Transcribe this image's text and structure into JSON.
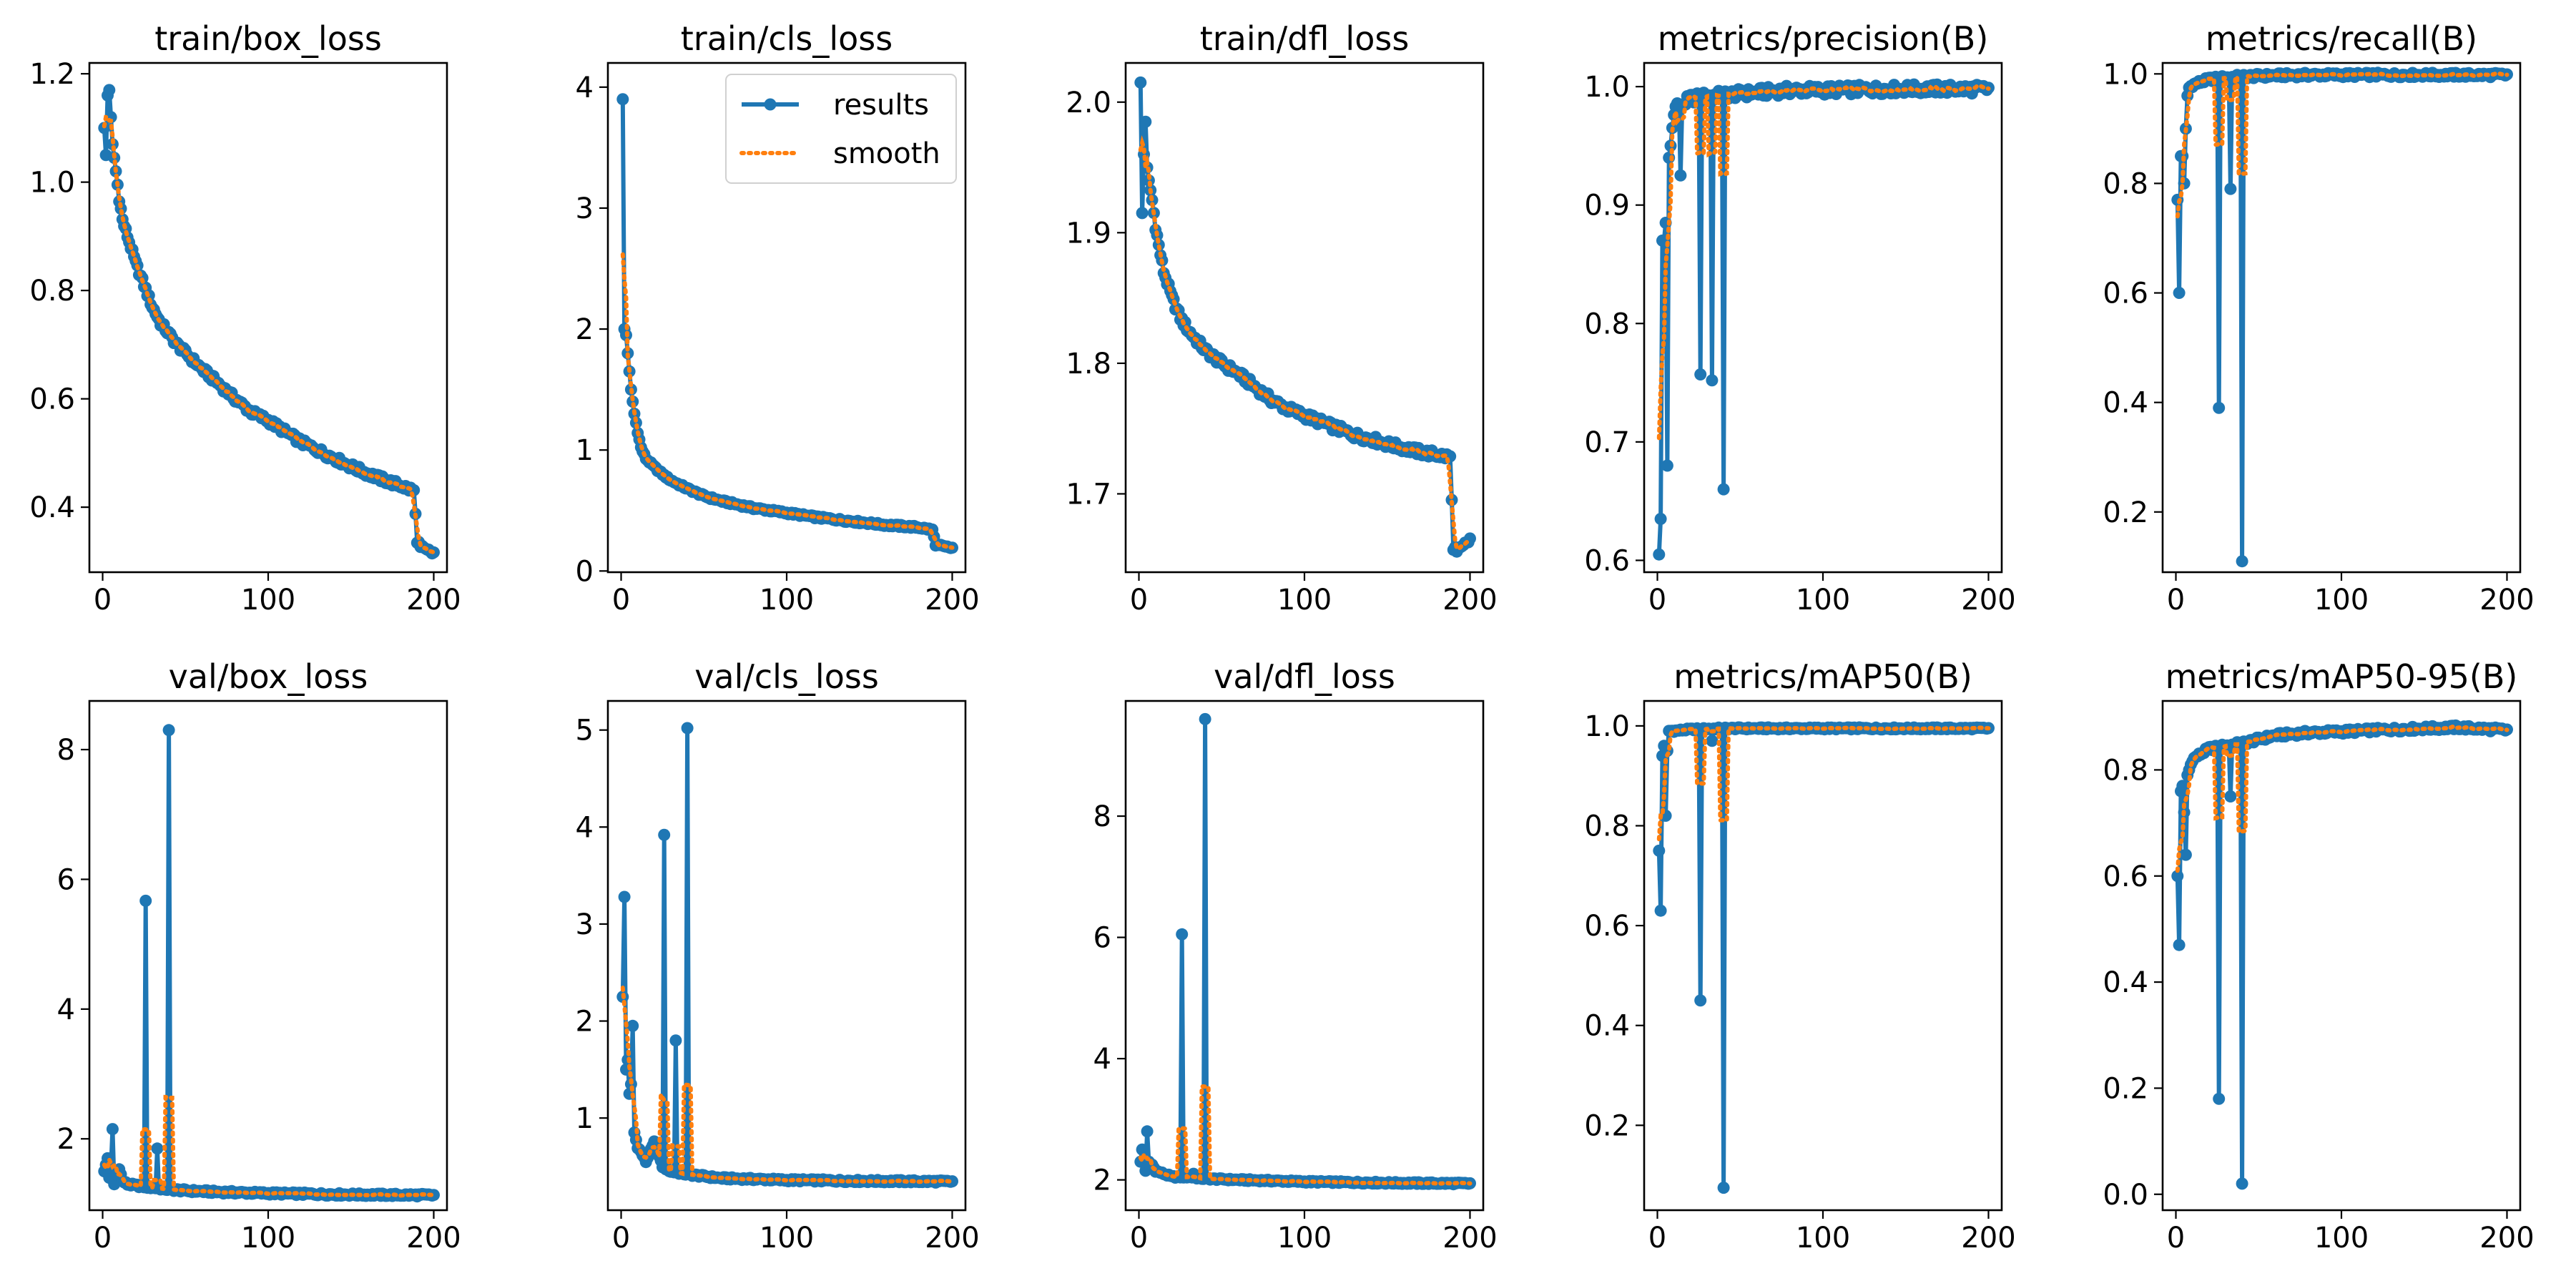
{
  "figure": {
    "background": "#ffffff"
  },
  "style": {
    "results_color": "#1f77b4",
    "smooth_color": "#ff7f0e"
  },
  "legend": {
    "location": "upper right",
    "panel_index": 1,
    "entries": [
      "results",
      "smooth"
    ]
  },
  "chart_data": [
    {
      "type": "line",
      "title": "train/box_loss",
      "xlabel": "",
      "ylabel": "",
      "xlim": [
        -8,
        208
      ],
      "ylim": [
        0.28,
        1.22
      ],
      "xticks": [
        0,
        100,
        200
      ],
      "yticks": [
        0.4,
        0.6,
        0.8,
        1.0,
        1.2
      ],
      "ytick_labels": [
        "0.4",
        "0.6",
        "0.8",
        "1.0",
        "1.2"
      ],
      "curve": [
        [
          1,
          1.1
        ],
        [
          2,
          1.05
        ],
        [
          3,
          1.16
        ],
        [
          4,
          1.17
        ],
        [
          5,
          1.12
        ],
        [
          6,
          1.07
        ],
        [
          8,
          1.02
        ],
        [
          10,
          0.97
        ],
        [
          12,
          0.93
        ],
        [
          15,
          0.9
        ],
        [
          20,
          0.85
        ],
        [
          25,
          0.81
        ],
        [
          30,
          0.77
        ],
        [
          35,
          0.74
        ],
        [
          40,
          0.72
        ],
        [
          45,
          0.7
        ],
        [
          50,
          0.685
        ],
        [
          60,
          0.655
        ],
        [
          70,
          0.628
        ],
        [
          80,
          0.6
        ],
        [
          90,
          0.575
        ],
        [
          100,
          0.56
        ],
        [
          110,
          0.54
        ],
        [
          120,
          0.52
        ],
        [
          130,
          0.505
        ],
        [
          140,
          0.49
        ],
        [
          150,
          0.475
        ],
        [
          160,
          0.462
        ],
        [
          170,
          0.45
        ],
        [
          180,
          0.44
        ],
        [
          188,
          0.43
        ],
        [
          190,
          0.34
        ],
        [
          192,
          0.325
        ],
        [
          195,
          0.32
        ],
        [
          200,
          0.315
        ]
      ],
      "spikes": [],
      "noise": 0.006,
      "smooth_window": 5
    },
    {
      "type": "line",
      "title": "train/cls_loss",
      "xlabel": "",
      "ylabel": "",
      "xlim": [
        -8,
        208
      ],
      "ylim": [
        -0.01,
        4.2
      ],
      "xticks": [
        0,
        100,
        200
      ],
      "yticks": [
        0,
        1,
        2,
        3,
        4
      ],
      "ytick_labels": [
        "0",
        "1",
        "2",
        "3",
        "4"
      ],
      "curve": [
        [
          1,
          3.9
        ],
        [
          2,
          2.0
        ],
        [
          3,
          1.95
        ],
        [
          4,
          1.8
        ],
        [
          5,
          1.65
        ],
        [
          6,
          1.5
        ],
        [
          8,
          1.3
        ],
        [
          10,
          1.15
        ],
        [
          12,
          1.02
        ],
        [
          15,
          0.93
        ],
        [
          20,
          0.86
        ],
        [
          25,
          0.8
        ],
        [
          30,
          0.75
        ],
        [
          40,
          0.68
        ],
        [
          50,
          0.62
        ],
        [
          60,
          0.58
        ],
        [
          70,
          0.55
        ],
        [
          80,
          0.52
        ],
        [
          90,
          0.5
        ],
        [
          100,
          0.48
        ],
        [
          120,
          0.44
        ],
        [
          140,
          0.41
        ],
        [
          160,
          0.38
        ],
        [
          180,
          0.36
        ],
        [
          188,
          0.34
        ],
        [
          190,
          0.22
        ],
        [
          195,
          0.2
        ],
        [
          200,
          0.19
        ]
      ],
      "spikes": [],
      "noise": 0.01,
      "smooth_window": 5
    },
    {
      "type": "line",
      "title": "train/dfl_loss",
      "xlabel": "",
      "ylabel": "",
      "xlim": [
        -8,
        208
      ],
      "ylim": [
        1.64,
        2.03
      ],
      "xticks": [
        0,
        100,
        200
      ],
      "yticks": [
        1.7,
        1.8,
        1.9,
        2.0
      ],
      "ytick_labels": [
        "1.7",
        "1.8",
        "1.9",
        "2.0"
      ],
      "curve": [
        [
          1,
          2.015
        ],
        [
          2,
          1.915
        ],
        [
          3,
          1.96
        ],
        [
          4,
          1.985
        ],
        [
          5,
          1.95
        ],
        [
          6,
          1.94
        ],
        [
          8,
          1.925
        ],
        [
          10,
          1.905
        ],
        [
          12,
          1.89
        ],
        [
          15,
          1.87
        ],
        [
          20,
          1.85
        ],
        [
          25,
          1.835
        ],
        [
          30,
          1.825
        ],
        [
          40,
          1.81
        ],
        [
          50,
          1.8
        ],
        [
          60,
          1.792
        ],
        [
          70,
          1.782
        ],
        [
          80,
          1.772
        ],
        [
          90,
          1.765
        ],
        [
          100,
          1.76
        ],
        [
          110,
          1.755
        ],
        [
          120,
          1.75
        ],
        [
          130,
          1.745
        ],
        [
          140,
          1.742
        ],
        [
          150,
          1.738
        ],
        [
          160,
          1.735
        ],
        [
          170,
          1.732
        ],
        [
          180,
          1.73
        ],
        [
          188,
          1.728
        ],
        [
          190,
          1.66
        ],
        [
          192,
          1.655
        ],
        [
          195,
          1.658
        ],
        [
          200,
          1.665
        ]
      ],
      "spikes": [],
      "noise": 0.003,
      "smooth_window": 5
    },
    {
      "type": "line",
      "title": "metrics/precision(B)",
      "xlabel": "",
      "ylabel": "",
      "xlim": [
        -8,
        208
      ],
      "ylim": [
        0.59,
        1.02
      ],
      "xticks": [
        0,
        100,
        200
      ],
      "yticks": [
        0.6,
        0.7,
        0.8,
        0.9,
        1.0
      ],
      "ytick_labels": [
        "0.6",
        "0.7",
        "0.8",
        "0.9",
        "1.0"
      ],
      "curve": [
        [
          1,
          0.605
        ],
        [
          2,
          0.635
        ],
        [
          3,
          0.87
        ],
        [
          4,
          0.87
        ],
        [
          5,
          0.885
        ],
        [
          6,
          0.68
        ],
        [
          7,
          0.94
        ],
        [
          8,
          0.95
        ],
        [
          10,
          0.98
        ],
        [
          12,
          0.985
        ],
        [
          15,
          0.985
        ],
        [
          20,
          0.99
        ],
        [
          30,
          0.992
        ],
        [
          40,
          0.993
        ],
        [
          60,
          0.995
        ],
        [
          80,
          0.997
        ],
        [
          100,
          0.997
        ],
        [
          150,
          0.998
        ],
        [
          200,
          0.998
        ]
      ],
      "spikes": [
        [
          14,
          0.925
        ],
        [
          26,
          0.757
        ],
        [
          33,
          0.752
        ],
        [
          40,
          0.66
        ]
      ],
      "noise": 0.004,
      "smooth_window": 5
    },
    {
      "type": "line",
      "title": "metrics/recall(B)",
      "xlabel": "",
      "ylabel": "",
      "xlim": [
        -8,
        208
      ],
      "ylim": [
        0.09,
        1.02
      ],
      "xticks": [
        0,
        100,
        200
      ],
      "yticks": [
        0.2,
        0.4,
        0.6,
        0.8,
        1.0
      ],
      "ytick_labels": [
        "0.2",
        "0.4",
        "0.6",
        "0.8",
        "1.0"
      ],
      "curve": [
        [
          1,
          0.77
        ],
        [
          2,
          0.6
        ],
        [
          3,
          0.85
        ],
        [
          4,
          0.85
        ],
        [
          5,
          0.8
        ],
        [
          6,
          0.9
        ],
        [
          7,
          0.96
        ],
        [
          8,
          0.975
        ],
        [
          10,
          0.98
        ],
        [
          15,
          0.985
        ],
        [
          20,
          0.99
        ],
        [
          30,
          0.993
        ],
        [
          40,
          0.995
        ],
        [
          60,
          0.997
        ],
        [
          80,
          0.998
        ],
        [
          100,
          0.998
        ],
        [
          150,
          0.998
        ],
        [
          200,
          0.998
        ]
      ],
      "spikes": [
        [
          26,
          0.39
        ],
        [
          33,
          0.79
        ],
        [
          40,
          0.11
        ]
      ],
      "noise": 0.004,
      "smooth_window": 5
    },
    {
      "type": "line",
      "title": "val/box_loss",
      "xlabel": "",
      "ylabel": "",
      "xlim": [
        -8,
        208
      ],
      "ylim": [
        0.9,
        8.75
      ],
      "xticks": [
        0,
        100,
        200
      ],
      "yticks": [
        2,
        4,
        6,
        8
      ],
      "ytick_labels": [
        "2",
        "4",
        "6",
        "8"
      ],
      "curve": [
        [
          1,
          1.5
        ],
        [
          2,
          1.6
        ],
        [
          3,
          1.7
        ],
        [
          4,
          1.4
        ],
        [
          5,
          1.55
        ],
        [
          6,
          2.15
        ],
        [
          7,
          1.3
        ],
        [
          8,
          1.45
        ],
        [
          10,
          1.55
        ],
        [
          12,
          1.35
        ],
        [
          15,
          1.3
        ],
        [
          20,
          1.28
        ],
        [
          30,
          1.25
        ],
        [
          40,
          1.22
        ],
        [
          50,
          1.2
        ],
        [
          70,
          1.18
        ],
        [
          100,
          1.16
        ],
        [
          150,
          1.14
        ],
        [
          200,
          1.13
        ]
      ],
      "spikes": [
        [
          26,
          5.67
        ],
        [
          33,
          1.85
        ],
        [
          40,
          8.3
        ]
      ],
      "noise": 0.02,
      "smooth_window": 5
    },
    {
      "type": "line",
      "title": "val/cls_loss",
      "xlabel": "",
      "ylabel": "",
      "xlim": [
        -8,
        208
      ],
      "ylim": [
        0.05,
        5.3
      ],
      "xticks": [
        0,
        100,
        200
      ],
      "yticks": [
        1,
        2,
        3,
        4,
        5
      ],
      "ytick_labels": [
        "1",
        "2",
        "3",
        "4",
        "5"
      ],
      "curve": [
        [
          1,
          2.25
        ],
        [
          2,
          3.28
        ],
        [
          3,
          1.5
        ],
        [
          4,
          1.6
        ],
        [
          5,
          1.25
        ],
        [
          6,
          1.35
        ],
        [
          7,
          1.95
        ],
        [
          8,
          0.85
        ],
        [
          10,
          0.7
        ],
        [
          12,
          0.65
        ],
        [
          15,
          0.55
        ],
        [
          20,
          0.75
        ],
        [
          25,
          0.5
        ],
        [
          30,
          0.45
        ],
        [
          40,
          0.42
        ],
        [
          60,
          0.38
        ],
        [
          100,
          0.36
        ],
        [
          150,
          0.35
        ],
        [
          200,
          0.345
        ]
      ],
      "spikes": [
        [
          26,
          3.92
        ],
        [
          33,
          1.8
        ],
        [
          40,
          5.02
        ]
      ],
      "noise": 0.012,
      "smooth_window": 5
    },
    {
      "type": "line",
      "title": "val/dfl_loss",
      "xlabel": "",
      "ylabel": "",
      "xlim": [
        -8,
        208
      ],
      "ylim": [
        1.5,
        9.9
      ],
      "xticks": [
        0,
        100,
        200
      ],
      "yticks": [
        2,
        4,
        6,
        8
      ],
      "ytick_labels": [
        "2",
        "4",
        "6",
        "8"
      ],
      "curve": [
        [
          1,
          2.3
        ],
        [
          2,
          2.5
        ],
        [
          3,
          2.3
        ],
        [
          4,
          2.15
        ],
        [
          5,
          2.8
        ],
        [
          6,
          2.3
        ],
        [
          7,
          2.2
        ],
        [
          8,
          2.25
        ],
        [
          10,
          2.15
        ],
        [
          15,
          2.1
        ],
        [
          20,
          2.05
        ],
        [
          30,
          2.05
        ],
        [
          40,
          2.02
        ],
        [
          60,
          2.0
        ],
        [
          100,
          1.97
        ],
        [
          150,
          1.95
        ],
        [
          200,
          1.94
        ]
      ],
      "spikes": [
        [
          26,
          6.05
        ],
        [
          33,
          2.1
        ],
        [
          40,
          9.6
        ]
      ],
      "noise": 0.015,
      "smooth_window": 5
    },
    {
      "type": "line",
      "title": "metrics/mAP50(B)",
      "xlabel": "",
      "ylabel": "",
      "xlim": [
        -8,
        208
      ],
      "ylim": [
        0.03,
        1.05
      ],
      "xticks": [
        0,
        100,
        200
      ],
      "yticks": [
        0.2,
        0.4,
        0.6,
        0.8,
        1.0
      ],
      "ytick_labels": [
        "0.2",
        "0.4",
        "0.6",
        "0.8",
        "1.0"
      ],
      "curve": [
        [
          1,
          0.75
        ],
        [
          2,
          0.63
        ],
        [
          3,
          0.94
        ],
        [
          4,
          0.96
        ],
        [
          5,
          0.82
        ],
        [
          6,
          0.95
        ],
        [
          7,
          0.99
        ],
        [
          8,
          0.99
        ],
        [
          10,
          0.99
        ],
        [
          20,
          0.993
        ],
        [
          40,
          0.995
        ],
        [
          100,
          0.995
        ],
        [
          200,
          0.995
        ]
      ],
      "spikes": [
        [
          26,
          0.45
        ],
        [
          33,
          0.97
        ],
        [
          40,
          0.075
        ]
      ],
      "noise": 0.002,
      "smooth_window": 5
    },
    {
      "type": "line",
      "title": "metrics/mAP50-95(B)",
      "xlabel": "",
      "ylabel": "",
      "xlim": [
        -8,
        208
      ],
      "ylim": [
        -0.03,
        0.93
      ],
      "xticks": [
        0,
        100,
        200
      ],
      "yticks": [
        0.0,
        0.2,
        0.4,
        0.6,
        0.8
      ],
      "ytick_labels": [
        "0.0",
        "0.2",
        "0.4",
        "0.6",
        "0.8"
      ],
      "curve": [
        [
          1,
          0.6
        ],
        [
          2,
          0.47
        ],
        [
          3,
          0.76
        ],
        [
          4,
          0.77
        ],
        [
          5,
          0.72
        ],
        [
          6,
          0.64
        ],
        [
          7,
          0.79
        ],
        [
          8,
          0.8
        ],
        [
          10,
          0.82
        ],
        [
          15,
          0.83
        ],
        [
          20,
          0.84
        ],
        [
          30,
          0.845
        ],
        [
          40,
          0.85
        ],
        [
          60,
          0.865
        ],
        [
          80,
          0.87
        ],
        [
          100,
          0.872
        ],
        [
          120,
          0.875
        ],
        [
          150,
          0.878
        ],
        [
          170,
          0.88
        ],
        [
          200,
          0.875
        ]
      ],
      "spikes": [
        [
          26,
          0.18
        ],
        [
          33,
          0.75
        ],
        [
          40,
          0.02
        ]
      ],
      "noise": 0.004,
      "smooth_window": 5
    }
  ]
}
